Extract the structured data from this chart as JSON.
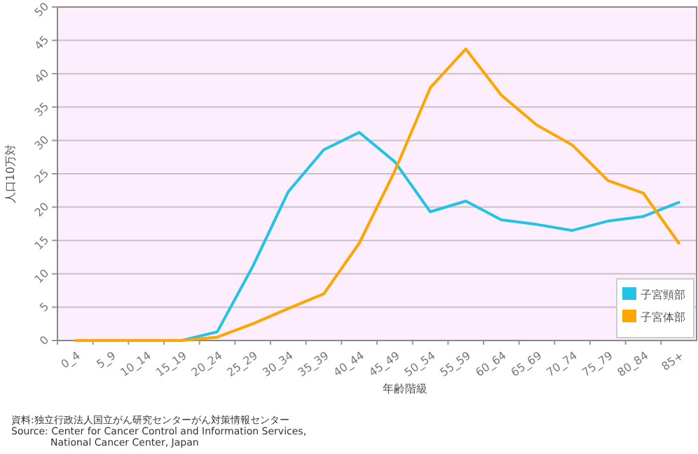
{
  "chart_data": {
    "type": "line",
    "xlabel": "年齢階級",
    "ylabel": "人口10万対",
    "categories": [
      "0_4",
      "5_9",
      "10_14",
      "15_19",
      "20_24",
      "25_29",
      "30_34",
      "35_39",
      "40_44",
      "45_49",
      "50_54",
      "55_59",
      "60_64",
      "65_69",
      "70_74",
      "75_79",
      "80_84",
      "85+"
    ],
    "series": [
      {
        "name": "子宮頸部",
        "color": "#22c4e6",
        "values": [
          null,
          null,
          0,
          0,
          1.3,
          11.1,
          22.3,
          28.6,
          31.2,
          26.8,
          19.3,
          20.9,
          18.1,
          17.4,
          16.5,
          17.9,
          18.6,
          20.7
        ]
      },
      {
        "name": "子宮体部",
        "color": "#ffa500",
        "values": [
          0,
          0,
          0,
          0,
          0.5,
          2.5,
          4.8,
          7.0,
          14.6,
          25.4,
          37.9,
          43.7,
          36.8,
          32.3,
          29.3,
          24.0,
          22.1,
          14.6
        ]
      }
    ],
    "ylim": [
      0,
      50
    ],
    "yticks": [
      0,
      5,
      10,
      15,
      20,
      25,
      30,
      35,
      40,
      45,
      50
    ],
    "grid": "y",
    "legend": "bottom right",
    "marker": "none",
    "line_style": "solid",
    "annotations": [
      "資料:独立行政法人国立がん研究センターがん対策情報センター",
      "Source: Center for Cancer Control and Information Services,",
      "National Cancer Center, Japan"
    ]
  }
}
